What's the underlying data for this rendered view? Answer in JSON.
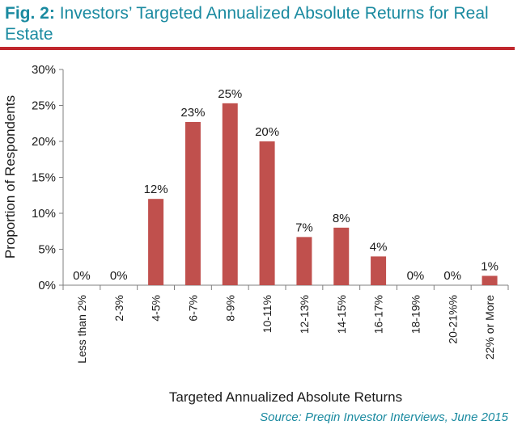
{
  "figure": {
    "label": "Fig. 2:",
    "title": "Investors’ Targeted Annualized Absolute Returns for Real Estate",
    "source": "Source: Preqin Investor Interviews, June 2015"
  },
  "colors": {
    "bar": "#c0504d",
    "accent": "#1a8aa0",
    "rule": "#c0272d"
  },
  "chart_data": {
    "type": "bar",
    "categories": [
      "Less than 2%",
      "2-3%",
      "4-5%",
      "6-7%",
      "8-9%",
      "10-11%",
      "12-13%",
      "14-15%",
      "16-17%",
      "18-19%",
      "20-21%%",
      "22% or More"
    ],
    "values": [
      0,
      0,
      12,
      22.7,
      25.3,
      20,
      6.7,
      8,
      4,
      0,
      0,
      1.3
    ],
    "data_labels": [
      "0%",
      "0%",
      "12%",
      "23%",
      "25%",
      "20%",
      "7%",
      "8%",
      "4%",
      "0%",
      "0%",
      "1%"
    ],
    "y_ticks": [
      "0%",
      "5%",
      "10%",
      "15%",
      "20%",
      "25%",
      "30%"
    ],
    "ylim": [
      0,
      30
    ],
    "xlabel": "Targeted Annualized Absolute Returns",
    "ylabel": "Proportion of Respondents",
    "grid": false,
    "legend": "none"
  }
}
